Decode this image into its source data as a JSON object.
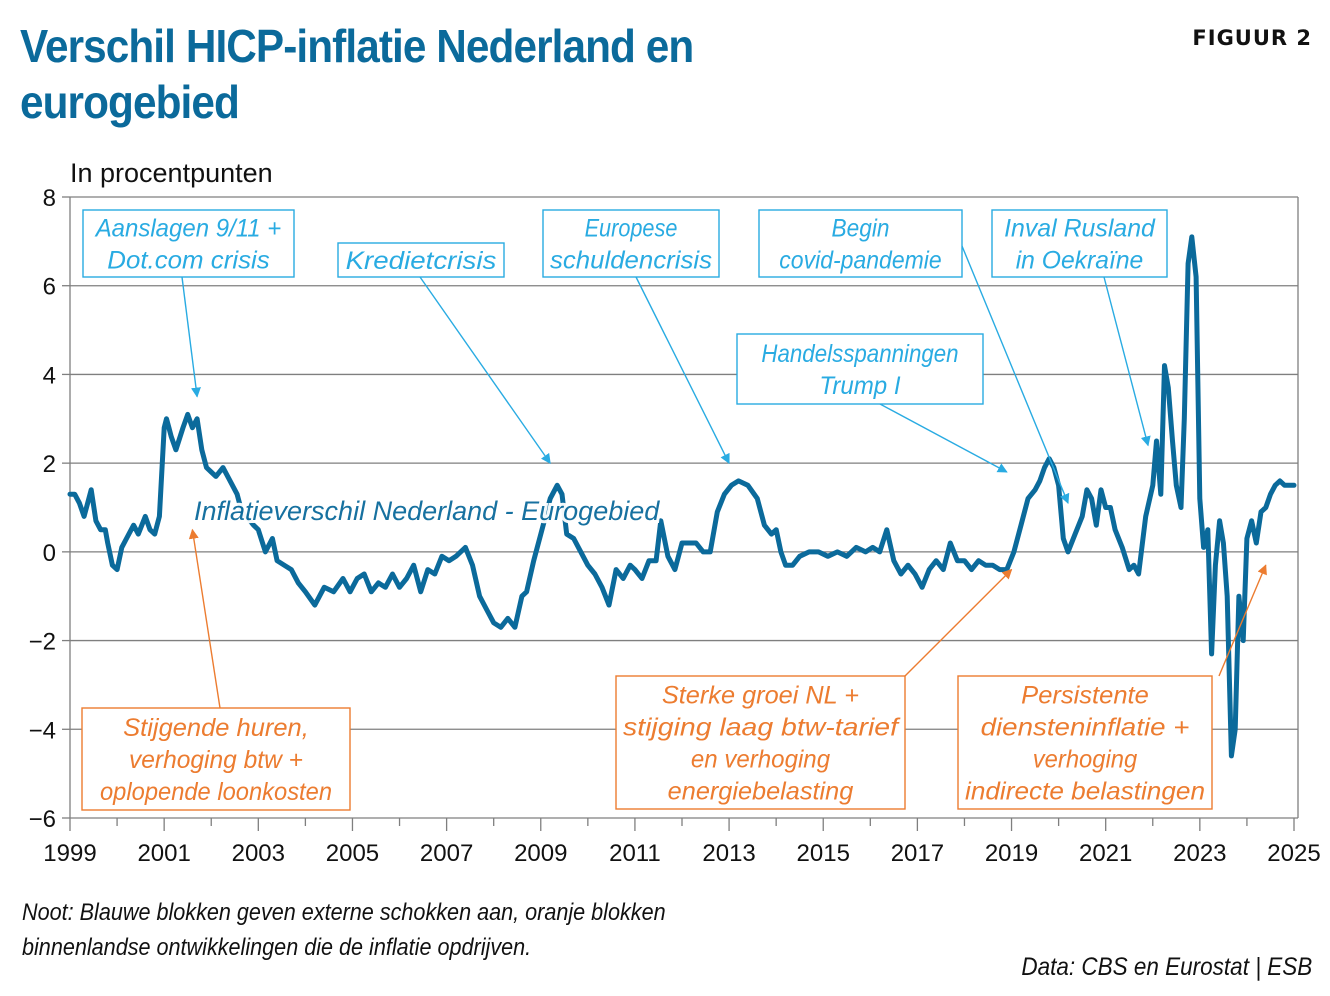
{
  "header": {
    "title": "Verschil HICP-inflatie Nederland en eurogebied",
    "figure_label": "FIGUUR 2"
  },
  "chart_data": {
    "type": "line",
    "title": "Verschil HICP-inflatie Nederland en eurogebied",
    "ylabel": "In procentpunten",
    "xlabel": "",
    "ylim": [
      -6,
      8
    ],
    "xlim": [
      1999,
      2025
    ],
    "yticks": [
      8,
      6,
      4,
      2,
      0,
      -2,
      -4,
      -6
    ],
    "ytick_labels": [
      "8",
      "6",
      "4",
      "2",
      "0",
      "−2",
      "−4",
      "−6"
    ],
    "xticks": [
      1999,
      2001,
      2003,
      2005,
      2007,
      2009,
      2011,
      2013,
      2015,
      2017,
      2019,
      2021,
      2023,
      2025
    ],
    "xtick_labels": [
      "1999",
      "2001",
      "2003",
      "2005",
      "2007",
      "2009",
      "2011",
      "2013",
      "2015",
      "2017",
      "2019",
      "2021",
      "2023",
      "2025"
    ],
    "grid": true,
    "line_color": "#0b6a9b",
    "series": [
      {
        "name": "Inflatieverschil Nederland - Eurogebied",
        "x": [
          1999.0,
          1999.1,
          1999.2,
          1999.3,
          1999.45,
          1999.55,
          1999.65,
          1999.75,
          1999.8,
          1999.9,
          2000.0,
          2000.1,
          2000.2,
          2000.35,
          2000.45,
          2000.6,
          2000.7,
          2000.8,
          2000.9,
          2001.0,
          2001.05,
          2001.1,
          2001.15,
          2001.25,
          2001.4,
          2001.5,
          2001.6,
          2001.7,
          2001.8,
          2001.9,
          2002.0,
          2002.1,
          2002.25,
          2002.4,
          2002.55,
          2002.65,
          2002.75,
          2002.9,
          2003.0,
          2003.15,
          2003.3,
          2003.4,
          2003.55,
          2003.7,
          2003.85,
          2004.0,
          2004.2,
          2004.4,
          2004.6,
          2004.8,
          2004.95,
          2005.1,
          2005.25,
          2005.4,
          2005.55,
          2005.7,
          2005.85,
          2006.0,
          2006.15,
          2006.3,
          2006.45,
          2006.6,
          2006.75,
          2006.9,
          2007.05,
          2007.2,
          2007.4,
          2007.55,
          2007.7,
          2007.85,
          2008.0,
          2008.15,
          2008.3,
          2008.45,
          2008.6,
          2008.7,
          2008.85,
          2009.0,
          2009.2,
          2009.35,
          2009.45,
          2009.55,
          2009.7,
          2009.85,
          2010.0,
          2010.15,
          2010.3,
          2010.45,
          2010.6,
          2010.75,
          2010.9,
          2011.0,
          2011.15,
          2011.3,
          2011.45,
          2011.55,
          2011.7,
          2011.85,
          2012.0,
          2012.15,
          2012.3,
          2012.45,
          2012.6,
          2012.75,
          2012.9,
          2013.05,
          2013.2,
          2013.4,
          2013.6,
          2013.75,
          2013.9,
          2014.0,
          2014.1,
          2014.2,
          2014.35,
          2014.5,
          2014.7,
          2014.9,
          2015.1,
          2015.3,
          2015.5,
          2015.7,
          2015.9,
          2016.05,
          2016.2,
          2016.35,
          2016.5,
          2016.65,
          2016.8,
          2016.95,
          2017.1,
          2017.25,
          2017.4,
          2017.55,
          2017.7,
          2017.85,
          2018.0,
          2018.15,
          2018.3,
          2018.45,
          2018.6,
          2018.75,
          2018.9,
          2019.05,
          2019.2,
          2019.35,
          2019.5,
          2019.6,
          2019.7,
          2019.8,
          2019.9,
          2020.0,
          2020.1,
          2020.2,
          2020.35,
          2020.5,
          2020.6,
          2020.7,
          2020.8,
          2020.9,
          2021.0,
          2021.1,
          2021.2,
          2021.35,
          2021.5,
          2021.6,
          2021.7,
          2021.85,
          2022.0,
          2022.08,
          2022.17,
          2022.25,
          2022.33,
          2022.42,
          2022.5,
          2022.6,
          2022.67,
          2022.75,
          2022.83,
          2022.92,
          2023.0,
          2023.08,
          2023.17,
          2023.25,
          2023.33,
          2023.42,
          2023.5,
          2023.58,
          2023.67,
          2023.75,
          2023.83,
          2023.92,
          2024.0,
          2024.1,
          2024.2,
          2024.3,
          2024.4,
          2024.5,
          2024.6,
          2024.7,
          2024.8,
          2024.9,
          2025.0
        ],
        "y": [
          1.3,
          1.3,
          1.1,
          0.8,
          1.4,
          0.7,
          0.5,
          0.5,
          0.2,
          -0.3,
          -0.4,
          0.1,
          0.3,
          0.6,
          0.4,
          0.8,
          0.5,
          0.4,
          0.8,
          2.8,
          3.0,
          2.8,
          2.6,
          2.3,
          2.8,
          3.1,
          2.8,
          3.0,
          2.3,
          1.9,
          1.8,
          1.7,
          1.9,
          1.6,
          1.3,
          0.9,
          0.8,
          0.6,
          0.5,
          0.0,
          0.3,
          -0.2,
          -0.3,
          -0.4,
          -0.7,
          -0.9,
          -1.2,
          -0.8,
          -0.9,
          -0.6,
          -0.9,
          -0.6,
          -0.5,
          -0.9,
          -0.7,
          -0.8,
          -0.5,
          -0.8,
          -0.6,
          -0.3,
          -0.9,
          -0.4,
          -0.5,
          -0.1,
          -0.2,
          -0.1,
          0.1,
          -0.3,
          -1.0,
          -1.3,
          -1.6,
          -1.7,
          -1.5,
          -1.7,
          -1.0,
          -0.9,
          -0.2,
          0.4,
          1.2,
          1.5,
          1.3,
          0.4,
          0.3,
          0.0,
          -0.3,
          -0.5,
          -0.8,
          -1.2,
          -0.4,
          -0.6,
          -0.3,
          -0.4,
          -0.6,
          -0.2,
          -0.2,
          0.7,
          -0.1,
          -0.4,
          0.2,
          0.2,
          0.2,
          0.0,
          0.0,
          0.9,
          1.3,
          1.5,
          1.6,
          1.5,
          1.2,
          0.6,
          0.4,
          0.5,
          0.0,
          -0.3,
          -0.3,
          -0.1,
          0.0,
          0.0,
          -0.1,
          0.0,
          -0.1,
          0.1,
          0.0,
          0.1,
          0.0,
          0.5,
          -0.2,
          -0.5,
          -0.3,
          -0.5,
          -0.8,
          -0.4,
          -0.2,
          -0.4,
          0.2,
          -0.2,
          -0.2,
          -0.4,
          -0.2,
          -0.3,
          -0.3,
          -0.4,
          -0.4,
          0.0,
          0.6,
          1.2,
          1.4,
          1.6,
          1.9,
          2.1,
          1.9,
          1.5,
          0.3,
          0.0,
          0.4,
          0.8,
          1.4,
          1.2,
          0.6,
          1.4,
          1.0,
          1.0,
          0.5,
          0.1,
          -0.4,
          -0.3,
          -0.5,
          0.8,
          1.5,
          2.5,
          1.3,
          4.2,
          3.7,
          2.5,
          1.5,
          1.0,
          3.0,
          6.5,
          7.1,
          6.2,
          1.2,
          0.1,
          0.5,
          -2.3,
          -0.3,
          0.7,
          0.2,
          -1.0,
          -4.6,
          -4.0,
          -1.0,
          -2.0,
          0.3,
          0.7,
          0.2,
          0.9,
          1.0,
          1.3,
          1.5,
          1.6,
          1.5,
          1.5,
          1.5
        ]
      }
    ],
    "inline_label": "Inflatieverschil Nederland - Eurogebied",
    "annotations": [
      {
        "text": [
          "Aanslagen 9/11 +",
          "Dot.com crisis"
        ],
        "kind": "external",
        "target_x": 2001.7,
        "target_y": 3.5
      },
      {
        "text": [
          "Kredietcrisis"
        ],
        "kind": "external",
        "target_x": 2009.2,
        "target_y": 2.0
      },
      {
        "text": [
          "Europese",
          "schuldencrisis"
        ],
        "kind": "external",
        "target_x": 2013.0,
        "target_y": 2.0
      },
      {
        "text": [
          "Begin",
          "covid-pandemie"
        ],
        "kind": "external",
        "target_x": 2020.2,
        "target_y": 1.1
      },
      {
        "text": [
          "Inval Rusland",
          "in Oekraïne"
        ],
        "kind": "external",
        "target_x": 2021.9,
        "target_y": 2.4
      },
      {
        "text": [
          "Handelsspanningen",
          "Trump I"
        ],
        "kind": "external",
        "target_x": 2018.9,
        "target_y": 1.8
      },
      {
        "text": [
          "Stijgende huren,",
          "verhoging btw +",
          "oplopende loonkosten"
        ],
        "kind": "domestic",
        "target_x": 2001.6,
        "target_y": 0.5
      },
      {
        "text": [
          "Sterke groei NL +",
          "stijging laag btw-tarief",
          "en verhoging",
          "energiebelasting"
        ],
        "kind": "domestic",
        "target_x": 2019.0,
        "target_y": -0.4
      },
      {
        "text": [
          "Persistente",
          "diensteninflatie +",
          "verhoging",
          "indirecte belastingen"
        ],
        "kind": "domestic",
        "target_x": 2024.4,
        "target_y": -0.3
      }
    ],
    "colors": {
      "external": "#29abe2",
      "domestic": "#ec7c30",
      "line": "#0b6a9b",
      "grid": "#7f7f7f"
    }
  },
  "footer": {
    "note_lines": [
      "Noot: Blauwe blokken geven externe schokken aan, oranje blokken",
      "binnenlandse ontwikkelingen die de inflatie opdrijven."
    ],
    "source": "Data: CBS en Eurostat | ESB"
  }
}
